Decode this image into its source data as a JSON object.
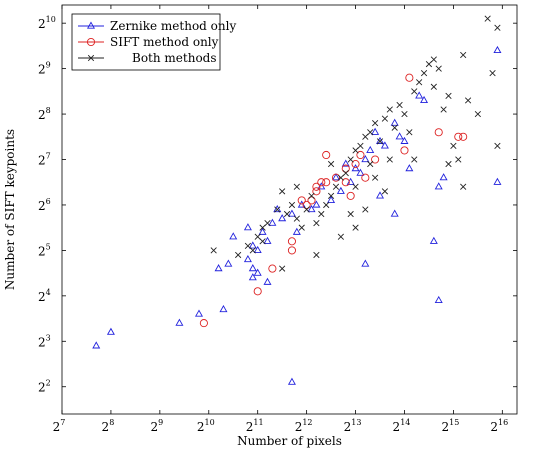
{
  "chart_data": {
    "type": "scatter",
    "title": "",
    "xlabel": "Number of pixels",
    "ylabel": "Number of SIFT keypoints",
    "x_scale": "log2",
    "y_scale": "log2",
    "xlim_exp": [
      7,
      16.3
    ],
    "ylim_exp": [
      1.4,
      10.4
    ],
    "x_ticks_exp": [
      7,
      8,
      9,
      10,
      11,
      12,
      13,
      14,
      15,
      16
    ],
    "y_ticks_exp": [
      2,
      3,
      4,
      5,
      6,
      7,
      8,
      9,
      10
    ],
    "tick_base": "2",
    "grid": false,
    "legend_position": "top-left",
    "series": [
      {
        "name": "Zernike method only",
        "color": "#2222dd",
        "marker": "triangle",
        "points": [
          [
            7.7,
            2.9
          ],
          [
            8.0,
            3.2
          ],
          [
            9.4,
            3.4
          ],
          [
            9.8,
            3.6
          ],
          [
            10.3,
            3.7
          ],
          [
            10.2,
            4.6
          ],
          [
            10.4,
            4.7
          ],
          [
            10.9,
            4.4
          ],
          [
            10.9,
            4.6
          ],
          [
            10.8,
            4.8
          ],
          [
            11.0,
            4.5
          ],
          [
            11.2,
            4.3
          ],
          [
            10.5,
            5.3
          ],
          [
            10.9,
            5.1
          ],
          [
            11.0,
            5.0
          ],
          [
            11.2,
            5.2
          ],
          [
            11.3,
            5.6
          ],
          [
            10.8,
            5.5
          ],
          [
            11.5,
            5.7
          ],
          [
            11.7,
            5.8
          ],
          [
            11.8,
            5.4
          ],
          [
            11.7,
            2.1
          ],
          [
            11.9,
            6.0
          ],
          [
            12.1,
            5.9
          ],
          [
            12.3,
            6.4
          ],
          [
            12.5,
            6.1
          ],
          [
            12.6,
            6.6
          ],
          [
            12.8,
            6.9
          ],
          [
            13.0,
            6.8
          ],
          [
            13.1,
            6.7
          ],
          [
            13.2,
            7.0
          ],
          [
            13.3,
            7.2
          ],
          [
            13.4,
            7.6
          ],
          [
            13.2,
            4.7
          ],
          [
            13.5,
            6.2
          ],
          [
            13.6,
            7.3
          ],
          [
            13.8,
            5.8
          ],
          [
            13.9,
            7.5
          ],
          [
            14.0,
            7.4
          ],
          [
            13.8,
            7.8
          ],
          [
            14.1,
            6.8
          ],
          [
            14.3,
            8.4
          ],
          [
            14.4,
            8.3
          ],
          [
            14.6,
            5.2
          ],
          [
            14.7,
            3.9
          ],
          [
            14.7,
            6.4
          ],
          [
            14.8,
            6.6
          ],
          [
            15.9,
            6.5
          ],
          [
            15.9,
            9.4
          ],
          [
            12.7,
            6.3
          ],
          [
            12.2,
            6.0
          ],
          [
            12.9,
            6.5
          ],
          [
            13.5,
            7.4
          ],
          [
            11.1,
            5.4
          ],
          [
            11.4,
            5.9
          ]
        ]
      },
      {
        "name": "SIFT method only",
        "color": "#dd2222",
        "marker": "circle",
        "points": [
          [
            9.9,
            3.4
          ],
          [
            11.0,
            4.1
          ],
          [
            11.3,
            4.6
          ],
          [
            11.7,
            5.2
          ],
          [
            11.7,
            5.0
          ],
          [
            11.9,
            6.1
          ],
          [
            12.1,
            6.1
          ],
          [
            12.2,
            6.4
          ],
          [
            12.3,
            6.5
          ],
          [
            12.4,
            6.5
          ],
          [
            12.4,
            7.1
          ],
          [
            12.6,
            6.6
          ],
          [
            12.8,
            6.5
          ],
          [
            12.9,
            6.2
          ],
          [
            13.0,
            6.9
          ],
          [
            13.1,
            7.1
          ],
          [
            13.2,
            6.6
          ],
          [
            13.4,
            7.0
          ],
          [
            14.0,
            7.2
          ],
          [
            14.1,
            8.8
          ],
          [
            14.7,
            7.6
          ],
          [
            15.1,
            7.5
          ],
          [
            15.2,
            7.5
          ],
          [
            12.0,
            6.0
          ],
          [
            12.2,
            6.3
          ],
          [
            12.8,
            6.8
          ]
        ]
      },
      {
        "name": "Both methods",
        "color": "#222222",
        "marker": "cross",
        "points": [
          [
            10.1,
            5.0
          ],
          [
            10.6,
            4.9
          ],
          [
            10.8,
            5.1
          ],
          [
            10.9,
            5.0
          ],
          [
            11.0,
            5.3
          ],
          [
            11.1,
            5.2
          ],
          [
            11.1,
            5.5
          ],
          [
            11.2,
            5.6
          ],
          [
            11.4,
            5.9
          ],
          [
            11.5,
            6.3
          ],
          [
            11.6,
            5.8
          ],
          [
            11.7,
            6.0
          ],
          [
            11.8,
            5.7
          ],
          [
            11.9,
            5.5
          ],
          [
            12.0,
            5.9
          ],
          [
            12.1,
            6.2
          ],
          [
            12.2,
            5.6
          ],
          [
            12.3,
            5.8
          ],
          [
            12.4,
            6.0
          ],
          [
            12.5,
            6.2
          ],
          [
            12.6,
            6.4
          ],
          [
            12.7,
            6.6
          ],
          [
            12.8,
            6.7
          ],
          [
            12.9,
            7.0
          ],
          [
            13.0,
            6.4
          ],
          [
            13.0,
            7.2
          ],
          [
            13.1,
            7.3
          ],
          [
            13.2,
            7.5
          ],
          [
            13.3,
            7.6
          ],
          [
            13.3,
            6.9
          ],
          [
            13.4,
            7.8
          ],
          [
            13.5,
            7.4
          ],
          [
            13.6,
            7.9
          ],
          [
            13.7,
            8.1
          ],
          [
            13.8,
            7.7
          ],
          [
            13.9,
            8.2
          ],
          [
            14.0,
            8.0
          ],
          [
            14.1,
            7.6
          ],
          [
            14.2,
            8.5
          ],
          [
            14.3,
            8.7
          ],
          [
            14.4,
            8.9
          ],
          [
            14.5,
            9.1
          ],
          [
            14.6,
            9.2
          ],
          [
            14.6,
            8.6
          ],
          [
            14.7,
            9.0
          ],
          [
            14.8,
            8.1
          ],
          [
            14.9,
            6.9
          ],
          [
            15.1,
            7.0
          ],
          [
            15.2,
            9.3
          ],
          [
            15.3,
            8.3
          ],
          [
            15.5,
            8.0
          ],
          [
            15.7,
            10.1
          ],
          [
            15.8,
            8.9
          ],
          [
            15.9,
            9.9
          ],
          [
            15.9,
            7.3
          ],
          [
            13.0,
            5.5
          ],
          [
            13.2,
            5.9
          ],
          [
            13.4,
            6.6
          ],
          [
            13.6,
            6.3
          ],
          [
            12.7,
            5.3
          ],
          [
            11.5,
            4.6
          ],
          [
            12.2,
            4.9
          ],
          [
            14.2,
            7.0
          ],
          [
            15.0,
            7.3
          ],
          [
            15.2,
            6.4
          ],
          [
            14.9,
            8.4
          ],
          [
            13.7,
            7.0
          ],
          [
            12.5,
            6.9
          ],
          [
            11.8,
            6.4
          ],
          [
            12.9,
            5.8
          ]
        ]
      }
    ]
  }
}
